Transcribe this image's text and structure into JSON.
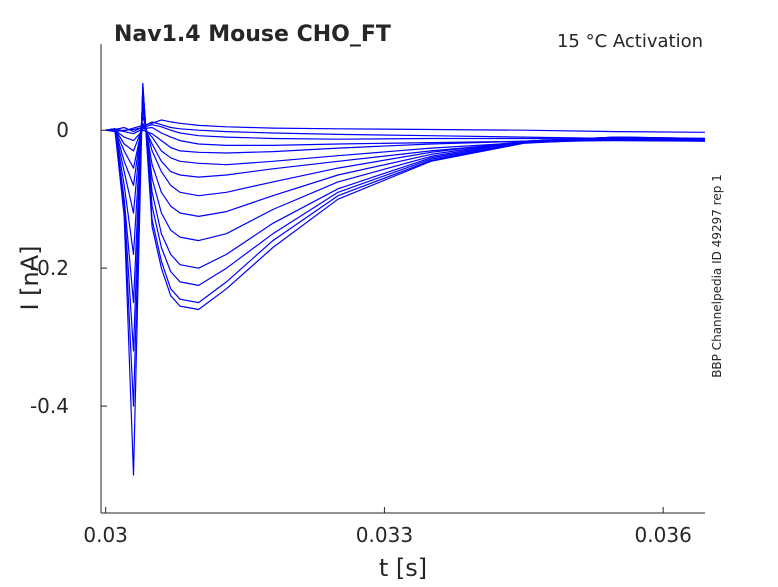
{
  "chart_data": {
    "type": "line",
    "title": "Nav1.4  Mouse  CHO_FT",
    "subtitle": "15 °C  Activation",
    "side_label": "BBP Channelpedia ID 49297 rep 1",
    "xlabel": "t [s]",
    "ylabel": "I [nA]",
    "xlim": [
      0.02995,
      0.03645
    ],
    "ylim": [
      -0.555,
      0.125
    ],
    "xticks": [
      0.03,
      0.033,
      0.036
    ],
    "xtick_labels": [
      "0.03",
      "0.033",
      "0.036"
    ],
    "yticks": [
      0,
      -0.2,
      -0.4
    ],
    "ytick_labels": [
      "0",
      "-0.2",
      "-0.4"
    ],
    "grid": false,
    "legend": "none",
    "line_color": "#0000ff",
    "axis_color": "#262626",
    "series": [
      {
        "x": [
          0.03,
          0.0301,
          0.0302,
          0.0303,
          0.0304,
          0.0305,
          0.0306,
          0.0307,
          0.0308,
          0.031,
          0.0313,
          0.0318,
          0.0325,
          0.0335,
          0.0345,
          0.0355,
          0.03645
        ],
        "y": [
          0.0,
          0.002,
          -0.001,
          0.003,
          0.007,
          0.01,
          0.015,
          0.012,
          0.01,
          0.007,
          0.005,
          0.003,
          0.002,
          0.001,
          0.0,
          -0.002,
          -0.003
        ]
      },
      {
        "x": [
          0.03,
          0.0301,
          0.0302,
          0.0303,
          0.0304,
          0.0305,
          0.0306,
          0.0307,
          0.0308,
          0.031,
          0.0313,
          0.0318,
          0.0325,
          0.0335,
          0.0345,
          0.0355,
          0.03645
        ],
        "y": [
          0.0,
          0.001,
          0.004,
          -0.002,
          0.005,
          0.012,
          0.008,
          0.004,
          0.002,
          0.0,
          -0.002,
          -0.004,
          -0.006,
          -0.008,
          -0.01,
          -0.012,
          -0.013
        ]
      },
      {
        "x": [
          0.03,
          0.0301,
          0.0302,
          0.0303,
          0.0304,
          0.0305,
          0.0306,
          0.0307,
          0.0308,
          0.031,
          0.0313,
          0.0318,
          0.0325,
          0.0335,
          0.0345,
          0.0355,
          0.03645
        ],
        "y": [
          0.0,
          -0.002,
          0.0,
          0.001,
          0.004,
          0.008,
          0.005,
          0.0,
          -0.004,
          -0.008,
          -0.01,
          -0.012,
          -0.013,
          -0.012,
          -0.012,
          -0.013,
          -0.014
        ]
      },
      {
        "x": [
          0.03,
          0.0301,
          0.0302,
          0.0303,
          0.0304,
          0.0305,
          0.0306,
          0.0307,
          0.0308,
          0.031,
          0.0313,
          0.0318,
          0.0325,
          0.0335,
          0.0345,
          0.0355,
          0.03645
        ],
        "y": [
          0.0,
          0.001,
          -0.002,
          -0.005,
          0.002,
          0.004,
          -0.004,
          -0.01,
          -0.015,
          -0.02,
          -0.022,
          -0.022,
          -0.02,
          -0.018,
          -0.016,
          -0.015,
          -0.016
        ]
      },
      {
        "x": [
          0.03,
          0.0301,
          0.0302,
          0.0303,
          0.0304,
          0.0305,
          0.0306,
          0.0307,
          0.0308,
          0.031,
          0.0313,
          0.0318,
          0.0325,
          0.0335,
          0.0345,
          0.0355,
          0.03645
        ],
        "y": [
          0.0,
          0.0,
          -0.01,
          -0.015,
          0.0,
          -0.005,
          -0.015,
          -0.025,
          -0.03,
          -0.032,
          -0.033,
          -0.031,
          -0.026,
          -0.02,
          -0.016,
          -0.014,
          -0.015
        ]
      },
      {
        "x": [
          0.03,
          0.0301,
          0.0302,
          0.0303,
          0.0304,
          0.0305,
          0.0306,
          0.0307,
          0.0308,
          0.031,
          0.0313,
          0.0318,
          0.0325,
          0.0335,
          0.0345,
          0.0355,
          0.03645
        ],
        "y": [
          0.0,
          0.002,
          -0.02,
          -0.03,
          0.005,
          -0.01,
          -0.03,
          -0.04,
          -0.045,
          -0.048,
          -0.05,
          -0.045,
          -0.037,
          -0.026,
          -0.018,
          -0.014,
          -0.016
        ]
      },
      {
        "x": [
          0.03,
          0.0301,
          0.0302,
          0.0303,
          0.0304,
          0.0305,
          0.0306,
          0.0307,
          0.0308,
          0.031,
          0.0313,
          0.0318,
          0.0325,
          0.0335,
          0.0345,
          0.0355,
          0.03645
        ],
        "y": [
          0.0,
          0.001,
          -0.03,
          -0.055,
          0.01,
          -0.02,
          -0.045,
          -0.06,
          -0.065,
          -0.068,
          -0.065,
          -0.056,
          -0.045,
          -0.03,
          -0.018,
          -0.012,
          -0.015
        ]
      },
      {
        "x": [
          0.03,
          0.0301,
          0.0302,
          0.0303,
          0.0304,
          0.0305,
          0.0306,
          0.0307,
          0.0308,
          0.031,
          0.0313,
          0.0318,
          0.0325,
          0.0335,
          0.0345,
          0.0355,
          0.03645
        ],
        "y": [
          0.0,
          0.002,
          -0.045,
          -0.08,
          0.02,
          -0.03,
          -0.06,
          -0.08,
          -0.09,
          -0.095,
          -0.09,
          -0.075,
          -0.055,
          -0.032,
          -0.016,
          -0.01,
          -0.012
        ]
      },
      {
        "x": [
          0.03,
          0.0301,
          0.0302,
          0.0303,
          0.0304,
          0.0305,
          0.0306,
          0.0307,
          0.0308,
          0.031,
          0.0313,
          0.0318,
          0.0325,
          0.0335,
          0.0345,
          0.0355,
          0.03645
        ],
        "y": [
          0.0,
          0.001,
          -0.06,
          -0.12,
          0.03,
          -0.05,
          -0.09,
          -0.11,
          -0.12,
          -0.125,
          -0.118,
          -0.095,
          -0.065,
          -0.035,
          -0.016,
          -0.01,
          -0.013
        ]
      },
      {
        "x": [
          0.03,
          0.0301,
          0.0302,
          0.0303,
          0.0304,
          0.0305,
          0.0306,
          0.0307,
          0.0308,
          0.031,
          0.0313,
          0.0318,
          0.0325,
          0.0335,
          0.0345,
          0.0355,
          0.03645
        ],
        "y": [
          0.0,
          0.002,
          -0.08,
          -0.18,
          0.04,
          -0.07,
          -0.12,
          -0.145,
          -0.155,
          -0.16,
          -0.15,
          -0.115,
          -0.075,
          -0.038,
          -0.016,
          -0.01,
          -0.012
        ]
      },
      {
        "x": [
          0.03,
          0.0301,
          0.0302,
          0.0303,
          0.0304,
          0.0305,
          0.0306,
          0.0307,
          0.0308,
          0.031,
          0.0313,
          0.0318,
          0.0325,
          0.0335,
          0.0345,
          0.0355,
          0.03645
        ],
        "y": [
          0.0,
          0.001,
          -0.1,
          -0.25,
          0.05,
          -0.09,
          -0.15,
          -0.18,
          -0.195,
          -0.2,
          -0.18,
          -0.135,
          -0.085,
          -0.04,
          -0.017,
          -0.01,
          -0.013
        ]
      },
      {
        "x": [
          0.03,
          0.0301,
          0.0302,
          0.0303,
          0.0304,
          0.0305,
          0.0306,
          0.0307,
          0.0308,
          0.031,
          0.0313,
          0.0318,
          0.0325,
          0.0335,
          0.0345,
          0.0355,
          0.03645
        ],
        "y": [
          0.0,
          0.002,
          -0.11,
          -0.32,
          0.06,
          -0.11,
          -0.17,
          -0.205,
          -0.22,
          -0.225,
          -0.2,
          -0.15,
          -0.09,
          -0.042,
          -0.018,
          -0.011,
          -0.012
        ]
      },
      {
        "x": [
          0.03,
          0.0301,
          0.0302,
          0.0303,
          0.0304,
          0.0305,
          0.0306,
          0.0307,
          0.0308,
          0.031,
          0.0313,
          0.0318,
          0.0325,
          0.0335,
          0.0345,
          0.0355,
          0.03645
        ],
        "y": [
          0.0,
          0.001,
          -0.12,
          -0.4,
          0.065,
          -0.13,
          -0.19,
          -0.23,
          -0.245,
          -0.25,
          -0.22,
          -0.16,
          -0.095,
          -0.044,
          -0.018,
          -0.011,
          -0.014
        ]
      },
      {
        "x": [
          0.03,
          0.0301,
          0.0302,
          0.0303,
          0.0304,
          0.0305,
          0.0306,
          0.0307,
          0.0308,
          0.031,
          0.0313,
          0.0318,
          0.0325,
          0.0335,
          0.0345,
          0.0355,
          0.03645
        ],
        "y": [
          0.0,
          0.002,
          -0.125,
          -0.5,
          0.068,
          -0.14,
          -0.2,
          -0.24,
          -0.255,
          -0.26,
          -0.23,
          -0.17,
          -0.1,
          -0.045,
          -0.019,
          -0.012,
          -0.013
        ]
      }
    ]
  }
}
